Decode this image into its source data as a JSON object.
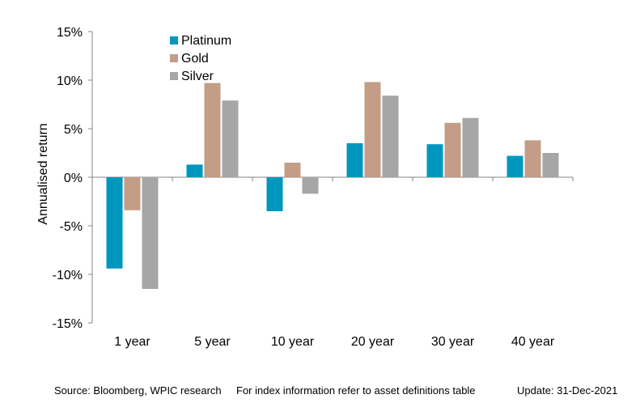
{
  "chart_data": {
    "type": "bar",
    "ylabel": "Annualised  return",
    "ylim": [
      -15,
      15
    ],
    "yticks": [
      15,
      10,
      5,
      0,
      -5,
      -10,
      -15
    ],
    "ytick_labels": [
      "15%",
      "10%",
      "5%",
      "0%",
      "-5%",
      "-10%",
      "-15%"
    ],
    "categories": [
      "1 year",
      "5 year",
      "10 year",
      "20 year",
      "30 year",
      "40 year"
    ],
    "series": [
      {
        "name": "Platinum",
        "color": "#0097bf",
        "values": [
          -9.4,
          1.3,
          -3.5,
          3.5,
          3.4,
          2.2
        ]
      },
      {
        "name": "Gold",
        "color": "#c39d86",
        "values": [
          -3.4,
          9.7,
          1.5,
          9.8,
          5.6,
          3.8
        ]
      },
      {
        "name": "Silver",
        "color": "#a6a6a6",
        "values": [
          -11.5,
          7.9,
          -1.7,
          8.4,
          6.1,
          2.5
        ]
      }
    ],
    "legend_position": "top-left",
    "grid": false
  },
  "footer": {
    "source": "Source: Bloomberg, WPIC research",
    "note": "For index information refer to asset definitions table",
    "update": "Update: 31-Dec-2021"
  }
}
